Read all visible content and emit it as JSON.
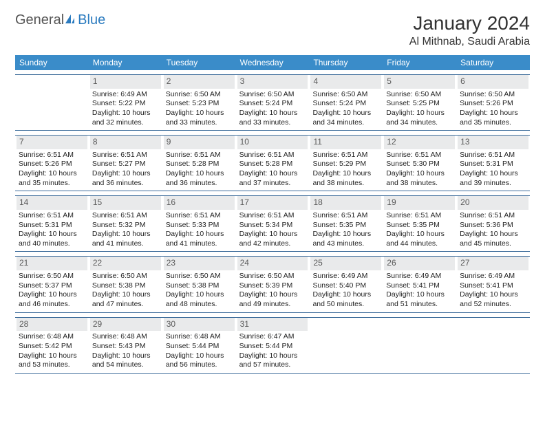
{
  "logo": {
    "text1": "General",
    "text2": "Blue"
  },
  "title": "January 2024",
  "location": "Al Mithnab, Saudi Arabia",
  "colors": {
    "header_bg": "#3a8cc9",
    "header_text": "#ffffff",
    "daynum_bg": "#e9eaeb",
    "daynum_text": "#5a5a5a",
    "border": "#3a6a99",
    "logo_general": "#555555",
    "logo_blue": "#2b7bbf"
  },
  "weekdays": [
    "Sunday",
    "Monday",
    "Tuesday",
    "Wednesday",
    "Thursday",
    "Friday",
    "Saturday"
  ],
  "weeks": [
    [
      {
        "empty": true
      },
      {
        "num": "1",
        "sunrise": "Sunrise: 6:49 AM",
        "sunset": "Sunset: 5:22 PM",
        "daylight": "Daylight: 10 hours and 32 minutes."
      },
      {
        "num": "2",
        "sunrise": "Sunrise: 6:50 AM",
        "sunset": "Sunset: 5:23 PM",
        "daylight": "Daylight: 10 hours and 33 minutes."
      },
      {
        "num": "3",
        "sunrise": "Sunrise: 6:50 AM",
        "sunset": "Sunset: 5:24 PM",
        "daylight": "Daylight: 10 hours and 33 minutes."
      },
      {
        "num": "4",
        "sunrise": "Sunrise: 6:50 AM",
        "sunset": "Sunset: 5:24 PM",
        "daylight": "Daylight: 10 hours and 34 minutes."
      },
      {
        "num": "5",
        "sunrise": "Sunrise: 6:50 AM",
        "sunset": "Sunset: 5:25 PM",
        "daylight": "Daylight: 10 hours and 34 minutes."
      },
      {
        "num": "6",
        "sunrise": "Sunrise: 6:50 AM",
        "sunset": "Sunset: 5:26 PM",
        "daylight": "Daylight: 10 hours and 35 minutes."
      }
    ],
    [
      {
        "num": "7",
        "sunrise": "Sunrise: 6:51 AM",
        "sunset": "Sunset: 5:26 PM",
        "daylight": "Daylight: 10 hours and 35 minutes."
      },
      {
        "num": "8",
        "sunrise": "Sunrise: 6:51 AM",
        "sunset": "Sunset: 5:27 PM",
        "daylight": "Daylight: 10 hours and 36 minutes."
      },
      {
        "num": "9",
        "sunrise": "Sunrise: 6:51 AM",
        "sunset": "Sunset: 5:28 PM",
        "daylight": "Daylight: 10 hours and 36 minutes."
      },
      {
        "num": "10",
        "sunrise": "Sunrise: 6:51 AM",
        "sunset": "Sunset: 5:28 PM",
        "daylight": "Daylight: 10 hours and 37 minutes."
      },
      {
        "num": "11",
        "sunrise": "Sunrise: 6:51 AM",
        "sunset": "Sunset: 5:29 PM",
        "daylight": "Daylight: 10 hours and 38 minutes."
      },
      {
        "num": "12",
        "sunrise": "Sunrise: 6:51 AM",
        "sunset": "Sunset: 5:30 PM",
        "daylight": "Daylight: 10 hours and 38 minutes."
      },
      {
        "num": "13",
        "sunrise": "Sunrise: 6:51 AM",
        "sunset": "Sunset: 5:31 PM",
        "daylight": "Daylight: 10 hours and 39 minutes."
      }
    ],
    [
      {
        "num": "14",
        "sunrise": "Sunrise: 6:51 AM",
        "sunset": "Sunset: 5:31 PM",
        "daylight": "Daylight: 10 hours and 40 minutes."
      },
      {
        "num": "15",
        "sunrise": "Sunrise: 6:51 AM",
        "sunset": "Sunset: 5:32 PM",
        "daylight": "Daylight: 10 hours and 41 minutes."
      },
      {
        "num": "16",
        "sunrise": "Sunrise: 6:51 AM",
        "sunset": "Sunset: 5:33 PM",
        "daylight": "Daylight: 10 hours and 41 minutes."
      },
      {
        "num": "17",
        "sunrise": "Sunrise: 6:51 AM",
        "sunset": "Sunset: 5:34 PM",
        "daylight": "Daylight: 10 hours and 42 minutes."
      },
      {
        "num": "18",
        "sunrise": "Sunrise: 6:51 AM",
        "sunset": "Sunset: 5:35 PM",
        "daylight": "Daylight: 10 hours and 43 minutes."
      },
      {
        "num": "19",
        "sunrise": "Sunrise: 6:51 AM",
        "sunset": "Sunset: 5:35 PM",
        "daylight": "Daylight: 10 hours and 44 minutes."
      },
      {
        "num": "20",
        "sunrise": "Sunrise: 6:51 AM",
        "sunset": "Sunset: 5:36 PM",
        "daylight": "Daylight: 10 hours and 45 minutes."
      }
    ],
    [
      {
        "num": "21",
        "sunrise": "Sunrise: 6:50 AM",
        "sunset": "Sunset: 5:37 PM",
        "daylight": "Daylight: 10 hours and 46 minutes."
      },
      {
        "num": "22",
        "sunrise": "Sunrise: 6:50 AM",
        "sunset": "Sunset: 5:38 PM",
        "daylight": "Daylight: 10 hours and 47 minutes."
      },
      {
        "num": "23",
        "sunrise": "Sunrise: 6:50 AM",
        "sunset": "Sunset: 5:38 PM",
        "daylight": "Daylight: 10 hours and 48 minutes."
      },
      {
        "num": "24",
        "sunrise": "Sunrise: 6:50 AM",
        "sunset": "Sunset: 5:39 PM",
        "daylight": "Daylight: 10 hours and 49 minutes."
      },
      {
        "num": "25",
        "sunrise": "Sunrise: 6:49 AM",
        "sunset": "Sunset: 5:40 PM",
        "daylight": "Daylight: 10 hours and 50 minutes."
      },
      {
        "num": "26",
        "sunrise": "Sunrise: 6:49 AM",
        "sunset": "Sunset: 5:41 PM",
        "daylight": "Daylight: 10 hours and 51 minutes."
      },
      {
        "num": "27",
        "sunrise": "Sunrise: 6:49 AM",
        "sunset": "Sunset: 5:41 PM",
        "daylight": "Daylight: 10 hours and 52 minutes."
      }
    ],
    [
      {
        "num": "28",
        "sunrise": "Sunrise: 6:48 AM",
        "sunset": "Sunset: 5:42 PM",
        "daylight": "Daylight: 10 hours and 53 minutes."
      },
      {
        "num": "29",
        "sunrise": "Sunrise: 6:48 AM",
        "sunset": "Sunset: 5:43 PM",
        "daylight": "Daylight: 10 hours and 54 minutes."
      },
      {
        "num": "30",
        "sunrise": "Sunrise: 6:48 AM",
        "sunset": "Sunset: 5:44 PM",
        "daylight": "Daylight: 10 hours and 56 minutes."
      },
      {
        "num": "31",
        "sunrise": "Sunrise: 6:47 AM",
        "sunset": "Sunset: 5:44 PM",
        "daylight": "Daylight: 10 hours and 57 minutes."
      },
      {
        "empty": true
      },
      {
        "empty": true
      },
      {
        "empty": true
      }
    ]
  ]
}
